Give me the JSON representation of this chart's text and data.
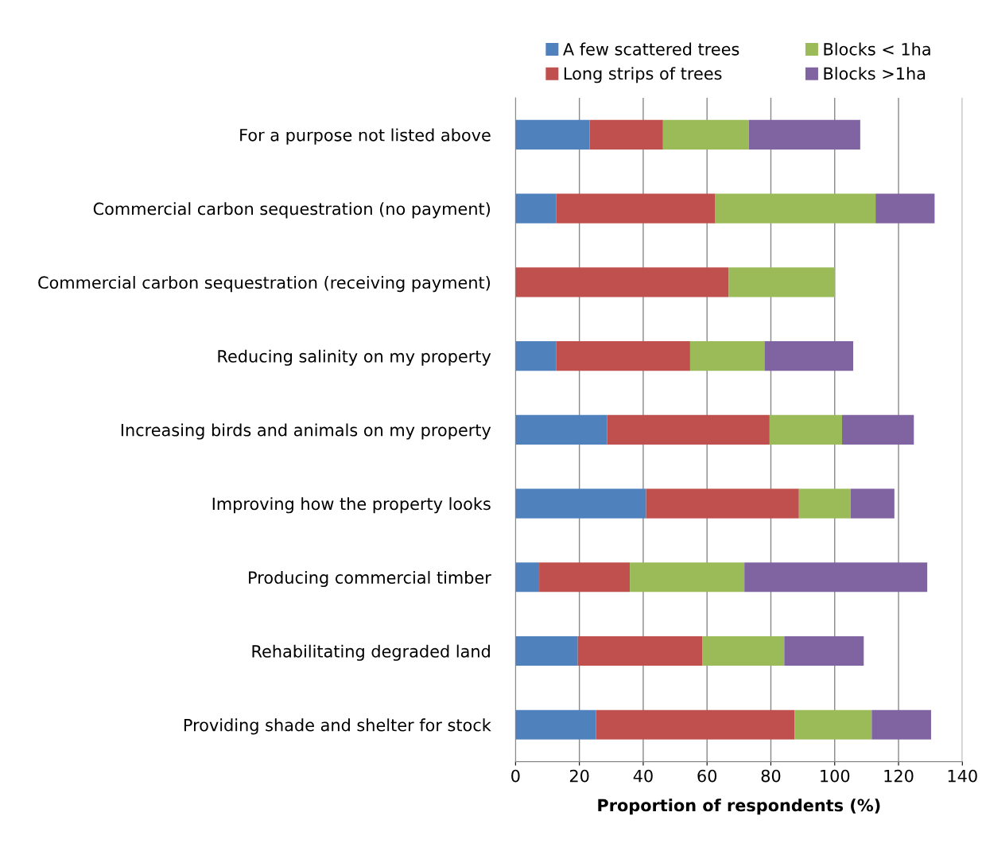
{
  "chart_data": {
    "type": "bar",
    "orientation": "horizontal",
    "stacked": true,
    "categories": [
      "For a purpose not listed above",
      "Commercial carbon sequestration (no payment)",
      "Commercial carbon sequestration (receiving payment)",
      "Reducing salinity on my property",
      "Increasing birds and animals on my property",
      "Improving how the property looks",
      "Producing commercial timber",
      "Rehabilitating degraded land",
      "Providing shade and shelter for stock"
    ],
    "series": [
      {
        "name": "A few scattered trees",
        "color": "#4f81bd",
        "values": [
          23.2,
          12.7,
          0,
          12.8,
          28.7,
          40.9,
          7.4,
          19.5,
          25.2
        ]
      },
      {
        "name": "Long strips of trees",
        "color": "#c0504d",
        "values": [
          23.0,
          49.9,
          66.8,
          41.9,
          50.9,
          47.9,
          28.4,
          39.1,
          62.2
        ]
      },
      {
        "name": "Blocks < 1ha",
        "color": "#9bbb59",
        "values": [
          26.9,
          50.2,
          33.3,
          23.3,
          22.7,
          16.2,
          35.9,
          25.6,
          24.2
        ]
      },
      {
        "name": "Blocks >1ha",
        "color": "#8064a2",
        "values": [
          34.9,
          18.5,
          0,
          27.8,
          22.5,
          13.7,
          57.3,
          24.9,
          18.6
        ]
      }
    ],
    "xlabel": "Proportion of respondents (%)",
    "xlim": [
      0,
      140
    ],
    "xticks": [
      0,
      20,
      40,
      60,
      80,
      100,
      120,
      140
    ],
    "grid": "x",
    "legend": "top"
  }
}
